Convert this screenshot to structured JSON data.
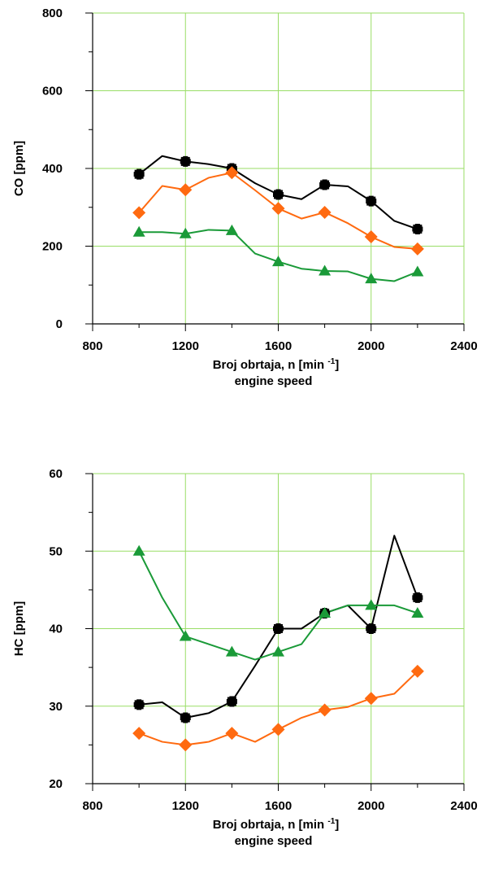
{
  "chart_data": [
    {
      "type": "line",
      "title": "",
      "xlabel_line1": "Broj obrtaja, n [min",
      "xlabel_sup": "-1",
      "xlabel_close": "]",
      "xlabel_line2": "engine speed",
      "ylabel": "CO [ppm]",
      "xlim": [
        800,
        2400
      ],
      "ylim": [
        0,
        800
      ],
      "xticks": [
        "800",
        "1200",
        "1600",
        "2000",
        "2400"
      ],
      "yticks": [
        "0",
        "200",
        "400",
        "600",
        "800"
      ],
      "grid": "x-and-y-major",
      "colors": {
        "black": "#000000",
        "orange": "#ff6a10",
        "green": "#1a9a38",
        "grid": "#99dd66"
      },
      "series": [
        {
          "marker": "square-plus",
          "color": "#000000",
          "line": [
            [
              1000,
              385
            ],
            [
              1100,
              432
            ],
            [
              1200,
              418
            ],
            [
              1300,
              411
            ],
            [
              1400,
              400
            ],
            [
              1500,
              362
            ],
            [
              1600,
              333
            ],
            [
              1700,
              321
            ],
            [
              1800,
              358
            ],
            [
              1900,
              354
            ],
            [
              2000,
              316
            ],
            [
              2100,
              265
            ],
            [
              2200,
              244
            ]
          ],
          "points": [
            [
              1000,
              385
            ],
            [
              1200,
              418
            ],
            [
              1400,
              400
            ],
            [
              1600,
              333
            ],
            [
              1800,
              358
            ],
            [
              2000,
              316
            ],
            [
              2200,
              244
            ]
          ]
        },
        {
          "marker": "diamond",
          "color": "#ff6a10",
          "line": [
            [
              1000,
              286
            ],
            [
              1100,
              355
            ],
            [
              1200,
              345
            ],
            [
              1300,
              376
            ],
            [
              1400,
              389
            ],
            [
              1500,
              344
            ],
            [
              1600,
              297
            ],
            [
              1700,
              271
            ],
            [
              1800,
              287
            ],
            [
              1900,
              259
            ],
            [
              2000,
              224
            ],
            [
              2100,
              198
            ],
            [
              2200,
              193
            ]
          ],
          "points": [
            [
              1000,
              286
            ],
            [
              1200,
              345
            ],
            [
              1400,
              389
            ],
            [
              1600,
              297
            ],
            [
              1800,
              287
            ],
            [
              2000,
              224
            ],
            [
              2200,
              193
            ]
          ]
        },
        {
          "marker": "triangle",
          "color": "#1a9a38",
          "line": [
            [
              1000,
              236
            ],
            [
              1100,
              236
            ],
            [
              1200,
              232
            ],
            [
              1300,
              242
            ],
            [
              1400,
              240
            ],
            [
              1500,
              181
            ],
            [
              1600,
              160
            ],
            [
              1700,
              142
            ],
            [
              1800,
              136
            ],
            [
              1900,
              135
            ],
            [
              2000,
              116
            ],
            [
              2100,
              110
            ],
            [
              2200,
              134
            ]
          ],
          "points": [
            [
              1000,
              236
            ],
            [
              1200,
              232
            ],
            [
              1400,
              240
            ],
            [
              1600,
              160
            ],
            [
              1800,
              136
            ],
            [
              2000,
              116
            ],
            [
              2200,
              134
            ]
          ]
        }
      ]
    },
    {
      "type": "line",
      "title": "",
      "xlabel_line1": "Broj obrtaja, n [min",
      "xlabel_sup": "-1",
      "xlabel_close": "]",
      "xlabel_line2": "engine speed",
      "ylabel": "HC [ppm]",
      "xlim": [
        800,
        2400
      ],
      "ylim": [
        20,
        60
      ],
      "xticks": [
        "800",
        "1200",
        "1600",
        "2000",
        "2400"
      ],
      "yticks": [
        "20",
        "30",
        "40",
        "50",
        "60"
      ],
      "grid": "x-and-y-major",
      "colors": {
        "black": "#000000",
        "orange": "#ff6a10",
        "green": "#1a9a38",
        "grid": "#99dd66"
      },
      "series": [
        {
          "marker": "square-plus",
          "color": "#000000",
          "line": [
            [
              1000,
              30.2
            ],
            [
              1100,
              30.5
            ],
            [
              1200,
              28.5
            ],
            [
              1300,
              29.1
            ],
            [
              1400,
              30.6
            ],
            [
              1500,
              35.2
            ],
            [
              1600,
              40.0
            ],
            [
              1700,
              40.0
            ],
            [
              1800,
              42.0
            ],
            [
              1900,
              43.0
            ],
            [
              2000,
              40.0
            ],
            [
              2100,
              52.0
            ],
            [
              2200,
              44.0
            ]
          ],
          "points": [
            [
              1000,
              30.2
            ],
            [
              1200,
              28.5
            ],
            [
              1400,
              30.6
            ],
            [
              1600,
              40.0
            ],
            [
              1800,
              42.0
            ],
            [
              2000,
              40.0
            ],
            [
              2200,
              44.0
            ]
          ]
        },
        {
          "marker": "diamond",
          "color": "#ff6a10",
          "line": [
            [
              1000,
              26.5
            ],
            [
              1100,
              25.4
            ],
            [
              1200,
              25.0
            ],
            [
              1300,
              25.4
            ],
            [
              1400,
              26.5
            ],
            [
              1500,
              25.4
            ],
            [
              1600,
              27.0
            ],
            [
              1700,
              28.5
            ],
            [
              1800,
              29.5
            ],
            [
              1900,
              29.9
            ],
            [
              2000,
              31.0
            ],
            [
              2100,
              31.6
            ],
            [
              2200,
              34.5
            ]
          ],
          "points": [
            [
              1000,
              26.5
            ],
            [
              1200,
              25.0
            ],
            [
              1400,
              26.5
            ],
            [
              1600,
              27.0
            ],
            [
              1800,
              29.5
            ],
            [
              2000,
              31.0
            ],
            [
              2200,
              34.5
            ]
          ]
        },
        {
          "marker": "triangle",
          "color": "#1a9a38",
          "line": [
            [
              1000,
              50.0
            ],
            [
              1100,
              44.0
            ],
            [
              1200,
              39.0
            ],
            [
              1300,
              38.0
            ],
            [
              1400,
              37.0
            ],
            [
              1500,
              36.0
            ],
            [
              1600,
              37.0
            ],
            [
              1700,
              38.0
            ],
            [
              1800,
              42.0
            ],
            [
              1900,
              43.0
            ],
            [
              2000,
              43.0
            ],
            [
              2100,
              43.0
            ],
            [
              2200,
              42.0
            ]
          ],
          "points": [
            [
              1000,
              50.0
            ],
            [
              1200,
              39.0
            ],
            [
              1400,
              37.0
            ],
            [
              1600,
              37.0
            ],
            [
              1800,
              42.0
            ],
            [
              2000,
              43.0
            ],
            [
              2200,
              42.0
            ]
          ]
        }
      ]
    }
  ]
}
